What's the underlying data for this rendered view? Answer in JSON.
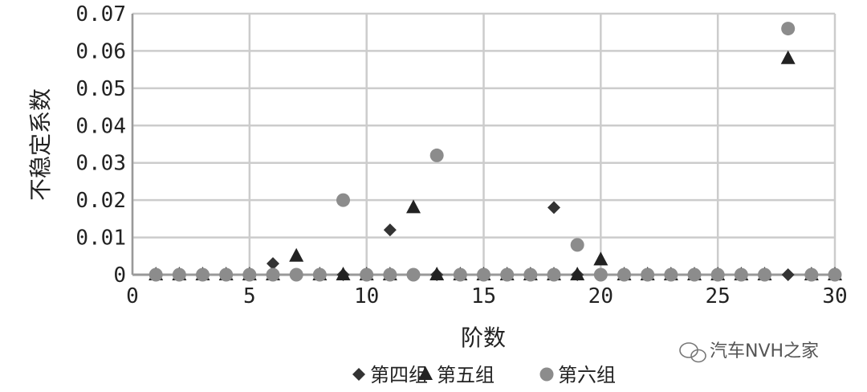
{
  "chart_data": {
    "type": "scatter",
    "xlabel": "阶数",
    "ylabel": "不稳定系数",
    "xlim": [
      0,
      30
    ],
    "ylim": [
      0,
      0.07
    ],
    "xticks": [
      "0",
      "5",
      "10",
      "15",
      "20",
      "25",
      "30"
    ],
    "yticks": [
      "0",
      "0.01",
      "0.02",
      "0.03",
      "0.04",
      "0.05",
      "0.06",
      "0.07"
    ],
    "grid": true,
    "legend_position": "bottom",
    "x": [
      1,
      2,
      3,
      4,
      5,
      6,
      7,
      8,
      9,
      10,
      11,
      12,
      13,
      14,
      15,
      16,
      17,
      18,
      19,
      20,
      21,
      22,
      23,
      24,
      25,
      26,
      27,
      28,
      29,
      30
    ],
    "series": [
      {
        "name": "第四组",
        "marker": "diamond",
        "color": "#333333",
        "values": [
          0,
          0,
          0,
          0,
          0,
          0.003,
          0,
          0,
          0,
          0,
          0.012,
          0,
          0,
          0,
          0,
          0,
          0,
          0.018,
          0,
          0,
          0,
          0,
          0,
          0,
          0,
          0,
          0,
          0,
          0,
          0
        ]
      },
      {
        "name": "第五组",
        "marker": "triangle",
        "color": "#222222",
        "values": [
          0,
          0,
          0,
          0,
          0,
          0,
          0.005,
          0,
          0,
          0,
          0,
          0.018,
          0,
          0,
          0,
          0,
          0,
          0,
          0,
          0.004,
          0,
          0,
          0,
          0,
          0,
          0,
          0,
          0.058,
          0,
          0
        ]
      },
      {
        "name": "第六组",
        "marker": "circle",
        "color": "#8c8c8c",
        "values": [
          0,
          0,
          0,
          0,
          0,
          0,
          0,
          0,
          0.02,
          0,
          0,
          0,
          0.032,
          0,
          0,
          0,
          0,
          0,
          0.008,
          0,
          0,
          0,
          0,
          0,
          0,
          0,
          0,
          0.066,
          0,
          0
        ]
      }
    ]
  },
  "watermark": "汽车NVH之家"
}
